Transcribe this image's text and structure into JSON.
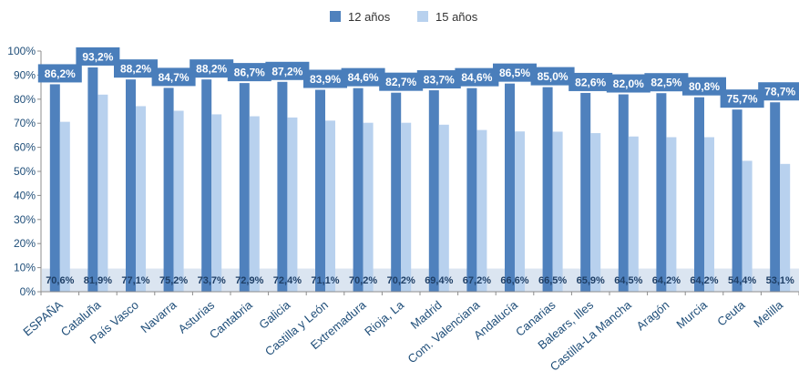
{
  "chart_data": {
    "type": "bar",
    "categories": [
      "ESPAÑA",
      "Cataluña",
      "País Vasco",
      "Navarra",
      "Asturias",
      "Cantabria",
      "Galicia",
      "Castilla y León",
      "Extremadura",
      "Rioja, La",
      "Madrid",
      "Com. Valenciana",
      "Andalucía",
      "Canarias",
      "Balears, Illes",
      "Castilla-La Mancha",
      "Aragón",
      "Murcia",
      "Ceuta",
      "Melilla"
    ],
    "series": [
      {
        "name": "12 años",
        "color": "#4f81bd",
        "values": [
          86.2,
          93.2,
          88.2,
          84.7,
          88.2,
          86.7,
          87.2,
          83.9,
          84.6,
          82.7,
          83.7,
          84.6,
          86.5,
          85.0,
          82.6,
          82.0,
          82.5,
          80.8,
          75.7,
          78.7
        ],
        "labels": [
          "86,2%",
          "93,2%",
          "88,2%",
          "84,7%",
          "88,2%",
          "86,7%",
          "87,2%",
          "83,9%",
          "84,6%",
          "82,7%",
          "83,7%",
          "84,6%",
          "86,5%",
          "85,0%",
          "82,6%",
          "82,0%",
          "82,5%",
          "80,8%",
          "75,7%",
          "78,7%"
        ]
      },
      {
        "name": "15 años",
        "color": "#b8d1ee",
        "values": [
          70.6,
          81.9,
          77.1,
          75.2,
          73.7,
          72.9,
          72.4,
          71.1,
          70.2,
          70.2,
          69.4,
          67.2,
          66.6,
          66.5,
          65.9,
          64.5,
          64.2,
          64.2,
          54.4,
          53.1
        ],
        "labels": [
          "70,6%",
          "81,9%",
          "77,1%",
          "75,2%",
          "73,7%",
          "72,9%",
          "72,4%",
          "71,1%",
          "70,2%",
          "70,2%",
          "69,4%",
          "67,2%",
          "66,6%",
          "66,5%",
          "65,9%",
          "64,5%",
          "64,2%",
          "64,2%",
          "54,4%",
          "53,1%"
        ]
      }
    ],
    "ylim": [
      0,
      100
    ],
    "yticks": [
      "0%",
      "10%",
      "20%",
      "30%",
      "40%",
      "50%",
      "60%",
      "70%",
      "80%",
      "90%",
      "100%"
    ],
    "legend_position": "top-center",
    "label_box_color": "#4a7ebb",
    "label_band_color": "#dbe5f1",
    "grid": false
  }
}
